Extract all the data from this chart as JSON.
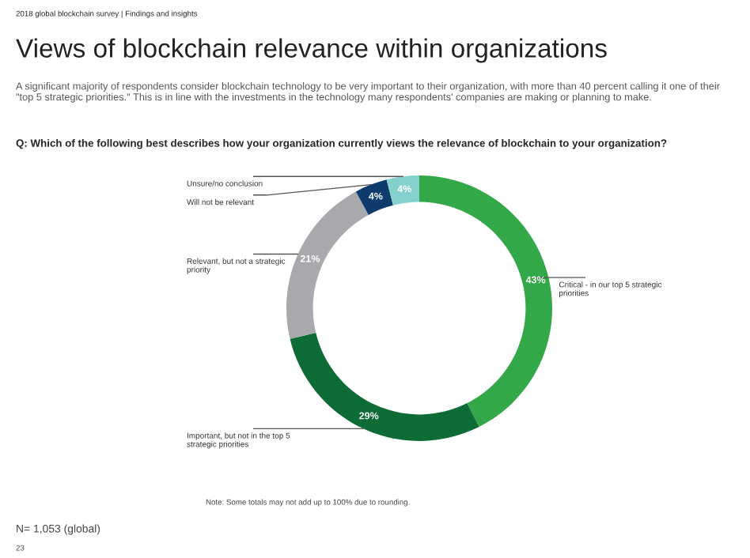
{
  "chart_data": {
    "type": "donut",
    "title": "Views of blockchain relevance within organizations",
    "subtitle": "A significant majority of respondents consider blockchain technology to be very important to their organization, with more than 40 percent calling it one of their \"top 5 strategic priorities.\" This is in line with the investments in the technology many respondents' companies are making or planning to make.",
    "annotations": [
      "2018 global blockchain survey | Findings and insights",
      "Q: Which of the following best describes how your organization currently views the relevance of blockchain to your organization?",
      "Note: Some totals may not add up to 100% due to rounding.",
      "N= 1,053 (global)",
      "23"
    ],
    "categories": [
      "Critical - in our top 5 strategic priorities",
      "Important, but not in the top 5 strategic priorities",
      "Relevant, but not a strategic priority",
      "Will not be relevant",
      "Unsure/no conclusion"
    ],
    "values": [
      43,
      29,
      21,
      4,
      4
    ],
    "value_labels": [
      "43%",
      "29%",
      "21%",
      "4%",
      "4%"
    ],
    "colors": [
      "#33a849",
      "#0d6b36",
      "#a7a9ac",
      "#0e3b6b",
      "#84d0cd"
    ]
  }
}
